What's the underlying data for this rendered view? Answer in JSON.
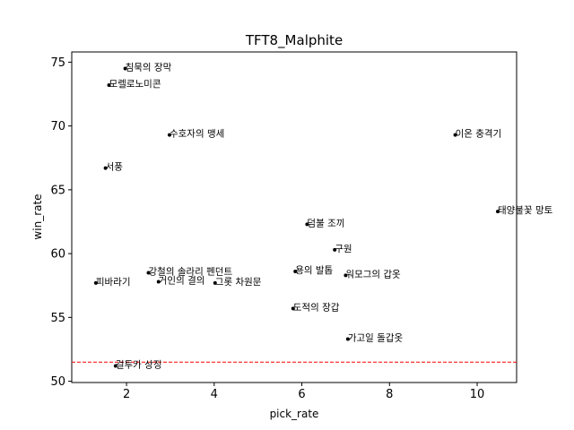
{
  "chart_data": {
    "type": "scatter",
    "title": "TFT8_Malphite",
    "xlabel": "pick_rate",
    "ylabel": "win_rate",
    "xlim": [
      0.75,
      10.9
    ],
    "ylim": [
      49.9,
      75.8
    ],
    "xticks": [
      2,
      4,
      6,
      8,
      10
    ],
    "yticks": [
      50,
      55,
      60,
      65,
      70,
      75
    ],
    "reference_line": {
      "y": 51.5,
      "color": "#ff0000",
      "style": "dashed"
    },
    "point_color": "#000000",
    "points": [
      {
        "label": "침묵의 장막",
        "x": 1.97,
        "y": 74.5
      },
      {
        "label": "모렐로노미콘",
        "x": 1.6,
        "y": 73.2
      },
      {
        "label": "수호자의 맹세",
        "x": 2.98,
        "y": 69.3
      },
      {
        "label": "이온 충격기",
        "x": 9.5,
        "y": 69.3
      },
      {
        "label": "서풍",
        "x": 1.52,
        "y": 66.7
      },
      {
        "label": "태양불꽃 망토",
        "x": 10.47,
        "y": 63.3
      },
      {
        "label": "덤불 조끼",
        "x": 6.12,
        "y": 62.3
      },
      {
        "label": "구원",
        "x": 6.75,
        "y": 60.3
      },
      {
        "label": "용의 발톱",
        "x": 5.85,
        "y": 58.6
      },
      {
        "label": "워모그의 갑옷",
        "x": 7.0,
        "y": 58.3
      },
      {
        "label": "강철의 솔라리 펜던트",
        "x": 2.5,
        "y": 58.5
      },
      {
        "label": "거인의 결의",
        "x": 2.73,
        "y": 57.8
      },
      {
        "label": "피바라기",
        "x": 1.3,
        "y": 57.7
      },
      {
        "label": "그롯 차원문",
        "x": 4.02,
        "y": 57.7
      },
      {
        "label": "도적의 장갑",
        "x": 5.8,
        "y": 55.7
      },
      {
        "label": "가고일 돌갑옷",
        "x": 7.05,
        "y": 53.3
      },
      {
        "label": "걸투카 상징",
        "x": 1.75,
        "y": 51.2
      }
    ]
  }
}
